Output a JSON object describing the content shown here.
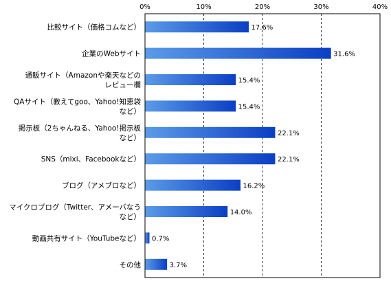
{
  "chart_data": {
    "type": "bar",
    "orientation": "horizontal",
    "title": "",
    "xlabel": "",
    "ylabel": "",
    "xlim": [
      0,
      40
    ],
    "ticks": [
      "0%",
      "10%",
      "20%",
      "30%",
      "40%"
    ],
    "grid": true,
    "legend": "none",
    "categories": [
      [
        "比較サイト（価格コムなど）"
      ],
      [
        "企業のWebサイト"
      ],
      [
        "通販サイト（Amazonや楽天などの",
        "レビュー欄"
      ],
      [
        "QAサイト（教えてgoo、Yahoo!知恵袋",
        "など）"
      ],
      [
        "掲示板（2ちゃんねる、Yahoo!掲示板",
        "など）"
      ],
      [
        "SNS（mixi、Facebookなど）"
      ],
      [
        "ブログ（アメブロなど）"
      ],
      [
        "マイクロブログ（Twitter、アメーバなう",
        "など）"
      ],
      [
        "動画共有サイト（YouTubeなど）"
      ],
      [
        "その他"
      ]
    ],
    "values": [
      17.6,
      31.6,
      15.4,
      15.4,
      22.1,
      22.1,
      16.2,
      14.0,
      0.7,
      3.7
    ],
    "value_labels": [
      "17.6%",
      "31.6%",
      "15.4%",
      "15.4%",
      "22.1%",
      "22.1%",
      "16.2%",
      "14.0%",
      "0.7%",
      "3.7%"
    ],
    "colors": {
      "bar_light": "#5b9be8",
      "bar_dark": "#0b3fc4",
      "grid": "#000000"
    }
  }
}
